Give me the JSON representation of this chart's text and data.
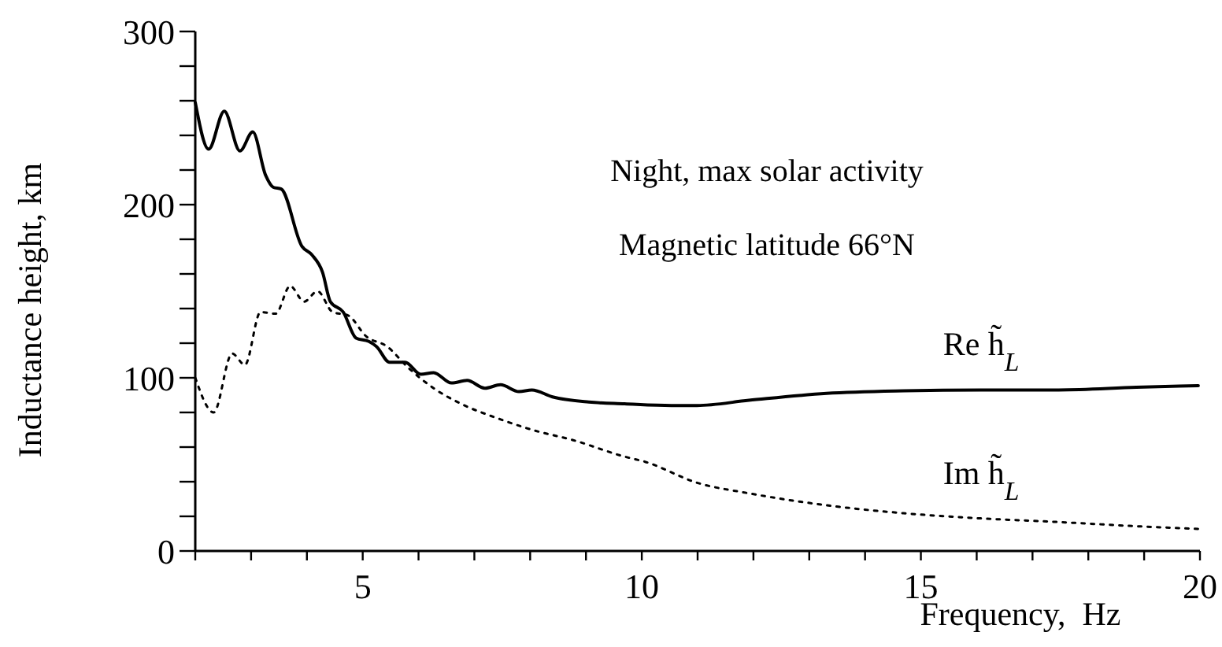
{
  "chart_data": {
    "type": "line",
    "xlabel": "Frequency,  Hz",
    "ylabel": "Inductance height, km",
    "annotations": [
      "Night, max solar activity",
      "Magnetic latitude 66°N"
    ],
    "xlim": [
      2,
      20
    ],
    "ylim": [
      0,
      300
    ],
    "xticks": [
      {
        "value": 2,
        "label": null
      },
      {
        "value": 3,
        "label": null
      },
      {
        "value": 4,
        "label": null
      },
      5,
      {
        "value": 6,
        "label": null
      },
      {
        "value": 7,
        "label": null
      },
      {
        "value": 8,
        "label": null
      },
      {
        "value": 9,
        "label": null
      },
      10,
      {
        "value": 11,
        "label": null
      },
      {
        "value": 12,
        "label": null
      },
      {
        "value": 13,
        "label": null
      },
      {
        "value": 14,
        "label": null
      },
      15,
      {
        "value": 16,
        "label": null
      },
      {
        "value": 17,
        "label": null
      },
      {
        "value": 18,
        "label": null
      },
      {
        "value": 19,
        "label": null
      },
      20
    ],
    "yticks": [
      0,
      {
        "value": 20,
        "label": null
      },
      {
        "value": 40,
        "label": null
      },
      {
        "value": 60,
        "label": null
      },
      {
        "value": 80,
        "label": null
      },
      100,
      {
        "value": 120,
        "label": null
      },
      {
        "value": 140,
        "label": null
      },
      {
        "value": 160,
        "label": null
      },
      {
        "value": 180,
        "label": null
      },
      200,
      {
        "value": 220,
        "label": null
      },
      {
        "value": 240,
        "label": null
      },
      {
        "value": 260,
        "label": null
      },
      {
        "value": 280,
        "label": null
      },
      300
    ],
    "grid": false,
    "series": [
      {
        "name": "Re h̃$_{L}$",
        "color": "#000000",
        "line_style": "solid",
        "x": [
          2.0,
          2.24,
          2.52,
          2.8,
          3.03,
          3.26,
          3.4,
          3.54,
          3.91,
          4.09,
          4.28,
          4.42,
          4.65,
          4.88,
          5.11,
          5.25,
          5.48,
          5.76,
          6.04,
          6.27,
          6.59,
          6.87,
          7.19,
          7.47,
          7.8,
          8.03,
          8.4,
          9.05,
          9.69,
          10.53,
          10.99,
          11.92,
          13.31,
          14.7,
          16.08,
          17.47,
          18.86,
          19.97
        ],
        "values": [
          259,
          232,
          254,
          231,
          242,
          217,
          210,
          209,
          176,
          171,
          161,
          144,
          138,
          123,
          121,
          118,
          109,
          109,
          102,
          103,
          97,
          98.5,
          94,
          96,
          92,
          93,
          89,
          86,
          85,
          84,
          84,
          87,
          91,
          92.5,
          93,
          93,
          94.5,
          95.5
        ]
      },
      {
        "name": "Im h̃$_{L}$",
        "color": "#000000",
        "line_style": "dotted",
        "x": [
          2.0,
          2.33,
          2.66,
          2.89,
          3.17,
          3.44,
          3.7,
          3.95,
          4.19,
          4.46,
          4.74,
          5.06,
          5.44,
          5.81,
          6.27,
          6.73,
          7.47,
          8.03,
          8.77,
          9.69,
          10.06,
          10.99,
          11.92,
          13.31,
          14.69,
          16.08,
          17.47,
          18.86,
          19.97
        ],
        "values": [
          100,
          80,
          114,
          107.5,
          138,
          137,
          153,
          144,
          150,
          138,
          136,
          124,
          118,
          106,
          94,
          85.5,
          76,
          70,
          64,
          54.5,
          51.5,
          39.4,
          33.3,
          26.4,
          21.8,
          18.8,
          16.7,
          14.3,
          12.7
        ]
      }
    ]
  }
}
